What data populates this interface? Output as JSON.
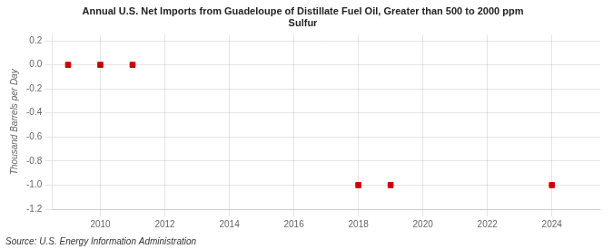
{
  "chart_data": {
    "type": "scatter",
    "title": "Annual U.S. Net Imports from Guadeloupe of Distillate Fuel Oil, Greater than 500 to 2000 ppm\nSulfur",
    "ylabel": "Thousand Barrels per Day",
    "source": "Source: U.S. Energy Information Administration",
    "x": [
      2009,
      2010,
      2011,
      2018,
      2019,
      2024
    ],
    "values": [
      0.0,
      0.0,
      0.0,
      -1.0,
      -1.0,
      -1.0
    ],
    "color": "#cc0000",
    "marker": "square",
    "xlim": [
      2008.5,
      2025.5
    ],
    "xticks": [
      2010,
      2012,
      2014,
      2016,
      2018,
      2020,
      2022,
      2024
    ],
    "ylim": [
      -1.2,
      0.25
    ],
    "yticks": [
      0.2,
      {
        "value": 0,
        "label": "0.0"
      },
      -0.2,
      -0.4,
      -0.6,
      -0.8,
      {
        "value": -1,
        "label": "-1.0"
      },
      -1.2
    ],
    "grid": true,
    "legend": false
  }
}
